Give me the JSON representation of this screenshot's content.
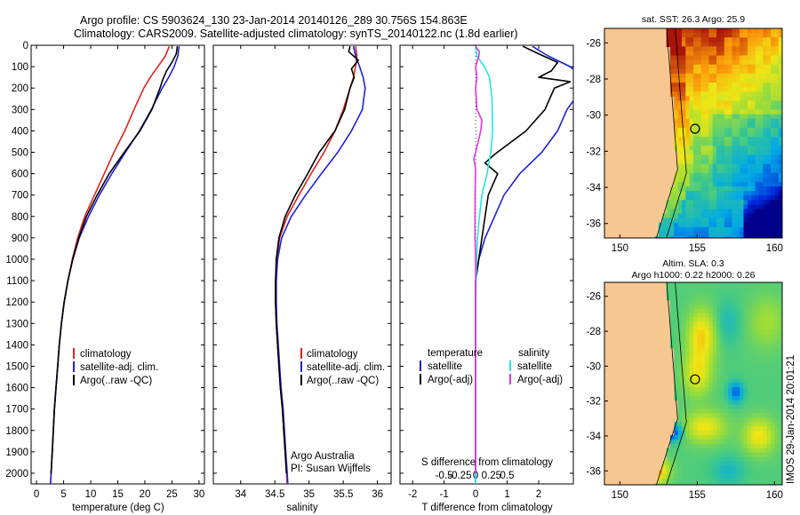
{
  "header": {
    "line1": "Argo profile: CS 5903624_130 23-Jan-2014 20140126_289 30.756S 154.863E",
    "line2": "Climatology: CARS2009. Satellite-adjusted climatology: synTS_20140122.nc (1.8d earlier)"
  },
  "credits": {
    "line1": "Argo Australia",
    "line2": "PI: Susan Wijffels"
  },
  "stamp": "IMOS 29-Jan-2014 20:01:21",
  "colors": {
    "climatology": "#e0231c",
    "satellite": "#1f22d6",
    "argo": "#000000",
    "sat_diff": "#28e3e8",
    "argo_diff": "#e234e0",
    "land": "#f7c792"
  },
  "chart_data": [
    {
      "type": "line",
      "xlabel": "temperature (deg C)",
      "xlim": [
        -1,
        31
      ],
      "ylim": [
        2050,
        0
      ],
      "x_ticks": [
        0,
        5,
        10,
        15,
        20,
        25,
        30
      ],
      "y_ticks": [
        0,
        100,
        200,
        300,
        400,
        500,
        600,
        700,
        800,
        900,
        1000,
        1100,
        1200,
        1300,
        1400,
        1500,
        1600,
        1700,
        1800,
        1900,
        2000
      ],
      "legend": [
        "climatology",
        "satellite-adj. clim.",
        "Argo(..raw -QC)"
      ],
      "series": [
        {
          "name": "climatology",
          "color": "#e0231c",
          "points": [
            [
              24.5,
              5
            ],
            [
              23.8,
              50
            ],
            [
              22.4,
              100
            ],
            [
              21.0,
              150
            ],
            [
              19.8,
              200
            ],
            [
              18.0,
              300
            ],
            [
              16.3,
              400
            ],
            [
              14.3,
              500
            ],
            [
              12.5,
              600
            ],
            [
              10.7,
              700
            ],
            [
              8.9,
              800
            ],
            [
              7.6,
              900
            ],
            [
              6.6,
              1000
            ],
            [
              5.8,
              1100
            ],
            [
              5.1,
              1200
            ],
            [
              4.6,
              1300
            ],
            [
              4.2,
              1400
            ],
            [
              3.9,
              1500
            ],
            [
              3.6,
              1600
            ],
            [
              3.3,
              1700
            ],
            [
              3.1,
              1800
            ],
            [
              2.9,
              1900
            ],
            [
              2.7,
              2000
            ],
            [
              2.6,
              2050
            ]
          ]
        },
        {
          "name": "satellite-adj. clim.",
          "color": "#1f22d6",
          "points": [
            [
              26.3,
              5
            ],
            [
              26.1,
              50
            ],
            [
              25.4,
              100
            ],
            [
              24.4,
              150
            ],
            [
              23.2,
              200
            ],
            [
              21.2,
              300
            ],
            [
              19.0,
              400
            ],
            [
              16.4,
              500
            ],
            [
              13.9,
              600
            ],
            [
              11.6,
              700
            ],
            [
              9.6,
              800
            ],
            [
              7.9,
              900
            ],
            [
              6.7,
              1000
            ],
            [
              5.8,
              1100
            ],
            [
              5.1,
              1200
            ],
            [
              4.6,
              1300
            ],
            [
              4.2,
              1400
            ],
            [
              3.9,
              1500
            ],
            [
              3.6,
              1600
            ],
            [
              3.3,
              1700
            ],
            [
              3.1,
              1800
            ],
            [
              2.9,
              1900
            ],
            [
              2.7,
              2000
            ],
            [
              2.6,
              2050
            ]
          ]
        },
        {
          "name": "Argo(..raw -QC)",
          "color": "#000000",
          "points": [
            [
              26.0,
              5
            ],
            [
              25.8,
              40
            ],
            [
              25.0,
              80
            ],
            [
              24.0,
              120
            ],
            [
              23.3,
              160
            ],
            [
              22.8,
              200
            ],
            [
              21.3,
              300
            ],
            [
              19.1,
              400
            ],
            [
              16.2,
              500
            ],
            [
              13.4,
              600
            ],
            [
              11.2,
              700
            ],
            [
              9.2,
              800
            ],
            [
              7.8,
              900
            ],
            [
              6.7,
              1000
            ],
            [
              5.8,
              1100
            ],
            [
              5.1,
              1200
            ],
            [
              4.6,
              1300
            ],
            [
              4.2,
              1400
            ],
            [
              3.9,
              1500
            ],
            [
              3.6,
              1600
            ],
            [
              3.3,
              1700
            ],
            [
              3.1,
              1800
            ],
            [
              2.9,
              1900
            ],
            [
              2.7,
              2000
            ]
          ]
        }
      ]
    },
    {
      "type": "line",
      "xlabel": "salinity",
      "xlim": [
        33.6,
        36.2
      ],
      "ylim": [
        2050,
        0
      ],
      "x_ticks": [
        34,
        34.5,
        35,
        35.5,
        36
      ],
      "legend": [
        "climatology",
        "satellite-adj. clim.",
        "Argo(..raw -QC)"
      ],
      "series": [
        {
          "name": "climatology",
          "color": "#e0231c",
          "points": [
            [
              35.68,
              5
            ],
            [
              35.7,
              50
            ],
            [
              35.68,
              100
            ],
            [
              35.65,
              150
            ],
            [
              35.6,
              200
            ],
            [
              35.5,
              300
            ],
            [
              35.38,
              400
            ],
            [
              35.22,
              500
            ],
            [
              35.03,
              600
            ],
            [
              34.85,
              700
            ],
            [
              34.68,
              800
            ],
            [
              34.57,
              900
            ],
            [
              34.53,
              1000
            ],
            [
              34.51,
              1100
            ],
            [
              34.51,
              1200
            ],
            [
              34.52,
              1300
            ],
            [
              34.54,
              1400
            ],
            [
              34.56,
              1500
            ],
            [
              34.58,
              1600
            ],
            [
              34.61,
              1700
            ],
            [
              34.63,
              1800
            ],
            [
              34.65,
              1900
            ],
            [
              34.67,
              2000
            ],
            [
              34.68,
              2050
            ]
          ]
        },
        {
          "name": "satellite-adj. clim.",
          "color": "#1f22d6",
          "points": [
            [
              35.65,
              5
            ],
            [
              35.68,
              50
            ],
            [
              35.74,
              100
            ],
            [
              35.79,
              150
            ],
            [
              35.82,
              200
            ],
            [
              35.78,
              300
            ],
            [
              35.62,
              400
            ],
            [
              35.42,
              500
            ],
            [
              35.18,
              600
            ],
            [
              34.95,
              700
            ],
            [
              34.74,
              800
            ],
            [
              34.6,
              900
            ],
            [
              34.54,
              1000
            ],
            [
              34.52,
              1100
            ],
            [
              34.52,
              1200
            ],
            [
              34.53,
              1300
            ],
            [
              34.55,
              1400
            ],
            [
              34.57,
              1500
            ],
            [
              34.59,
              1600
            ],
            [
              34.62,
              1700
            ],
            [
              34.64,
              1800
            ],
            [
              34.66,
              1900
            ],
            [
              34.68,
              2000
            ],
            [
              34.69,
              2050
            ]
          ]
        },
        {
          "name": "Argo(..raw -QC)",
          "color": "#000000",
          "points": [
            [
              35.6,
              5
            ],
            [
              35.58,
              30
            ],
            [
              35.72,
              70
            ],
            [
              35.62,
              110
            ],
            [
              35.66,
              150
            ],
            [
              35.6,
              200
            ],
            [
              35.52,
              300
            ],
            [
              35.38,
              400
            ],
            [
              35.15,
              500
            ],
            [
              34.98,
              600
            ],
            [
              34.8,
              700
            ],
            [
              34.65,
              800
            ],
            [
              34.56,
              900
            ],
            [
              34.52,
              1000
            ],
            [
              34.51,
              1100
            ],
            [
              34.51,
              1200
            ],
            [
              34.52,
              1300
            ],
            [
              34.54,
              1400
            ],
            [
              34.56,
              1500
            ],
            [
              34.58,
              1600
            ],
            [
              34.61,
              1700
            ],
            [
              34.63,
              1800
            ],
            [
              34.65,
              1900
            ],
            [
              34.67,
              2000
            ]
          ]
        }
      ]
    },
    {
      "type": "line",
      "xlabel": "T difference from climatology",
      "x2label": "S difference from climatology",
      "xlim": [
        -2.4,
        3.1
      ],
      "ylim": [
        2050,
        0
      ],
      "x_ticks": [
        -2,
        -1,
        0,
        1,
        2
      ],
      "x2_ticks": [
        -0.5,
        -0.25,
        0,
        0.25,
        0.5
      ],
      "legend_titles": [
        "temperature",
        "salinity"
      ],
      "legend": [
        "satellite",
        "Argo(-adj)",
        "satellite",
        "Argo(-adj)"
      ],
      "series": [
        {
          "name": "satellite",
          "group": "temperature",
          "color": "#1f22d6",
          "points": [
            [
              1.8,
              5
            ],
            [
              2.3,
              50
            ],
            [
              3.0,
              100
            ],
            [
              3.4,
              150
            ],
            [
              3.4,
              200
            ],
            [
              2.9,
              300
            ],
            [
              2.6,
              400
            ],
            [
              2.1,
              500
            ],
            [
              1.4,
              600
            ],
            [
              0.9,
              700
            ],
            [
              0.6,
              800
            ],
            [
              0.3,
              900
            ],
            [
              0.1,
              1000
            ],
            [
              0.0,
              1100
            ],
            [
              0.0,
              1200
            ],
            [
              0.0,
              1500
            ],
            [
              0.0,
              2050
            ]
          ]
        },
        {
          "name": "Argo(-adj)",
          "group": "temperature",
          "color": "#000000",
          "points": [
            [
              1.5,
              5
            ],
            [
              2.0,
              40
            ],
            [
              2.6,
              80
            ],
            [
              2.4,
              120
            ],
            [
              2.0,
              150
            ],
            [
              3.0,
              170
            ],
            [
              2.5,
              200
            ],
            [
              2.2,
              300
            ],
            [
              1.6,
              400
            ],
            [
              0.6,
              510
            ],
            [
              0.3,
              550
            ],
            [
              0.7,
              600
            ],
            [
              0.4,
              700
            ],
            [
              0.3,
              800
            ],
            [
              0.2,
              900
            ],
            [
              0.1,
              1000
            ],
            [
              0.0,
              1100
            ],
            [
              0.0,
              1300
            ],
            [
              0.0,
              2000
            ]
          ]
        },
        {
          "name": "satellite",
          "group": "salinity",
          "color": "#28e3e8",
          "points": [
            [
              0.0,
              5
            ],
            [
              0.02,
              50
            ],
            [
              0.14,
              100
            ],
            [
              0.22,
              150
            ],
            [
              0.26,
              250
            ],
            [
              0.27,
              400
            ],
            [
              0.24,
              500
            ],
            [
              0.18,
              600
            ],
            [
              0.1,
              700
            ],
            [
              0.06,
              800
            ],
            [
              0.03,
              900
            ],
            [
              0.015,
              1000
            ],
            [
              0.0,
              1200
            ],
            [
              0.0,
              2050
            ]
          ]
        },
        {
          "name": "Argo(-adj)",
          "group": "salinity",
          "color": "#e234e0",
          "points": [
            [
              0.0,
              5
            ],
            [
              0.06,
              30
            ],
            [
              0.05,
              50
            ],
            [
              0.0,
              100
            ],
            [
              0.02,
              150
            ],
            [
              0.0,
              200
            ],
            [
              0.02,
              300
            ],
            [
              0.1,
              350
            ],
            [
              0.08,
              400
            ],
            [
              0.0,
              500
            ],
            [
              -0.03,
              530
            ],
            [
              0.0,
              580
            ],
            [
              -0.01,
              700
            ],
            [
              -0.01,
              900
            ],
            [
              0.0,
              1000
            ],
            [
              0.0,
              1300
            ],
            [
              0.0,
              2000
            ]
          ]
        }
      ]
    },
    {
      "type": "heatmap",
      "title": "sat. SST: 26.3 Argo: 25.9",
      "xlim": [
        149,
        160.5
      ],
      "ylim": [
        -36.8,
        -25.2
      ],
      "x_ticks": [
        150,
        155,
        160
      ],
      "y_ticks": [
        -26,
        -28,
        -30,
        -32,
        -34,
        -36
      ],
      "argo_position": [
        154.863,
        -30.756
      ]
    },
    {
      "type": "heatmap",
      "title": "Altim. SLA: 0.3",
      "subtitle": "Argo h1000: 0.22 h2000: 0.26",
      "xlim": [
        149,
        160.5
      ],
      "ylim": [
        -36.8,
        -25.2
      ],
      "x_ticks": [
        150,
        155,
        160
      ],
      "y_ticks": [
        -26,
        -28,
        -30,
        -32,
        -34,
        -36
      ],
      "argo_position": [
        154.863,
        -30.756
      ]
    }
  ]
}
